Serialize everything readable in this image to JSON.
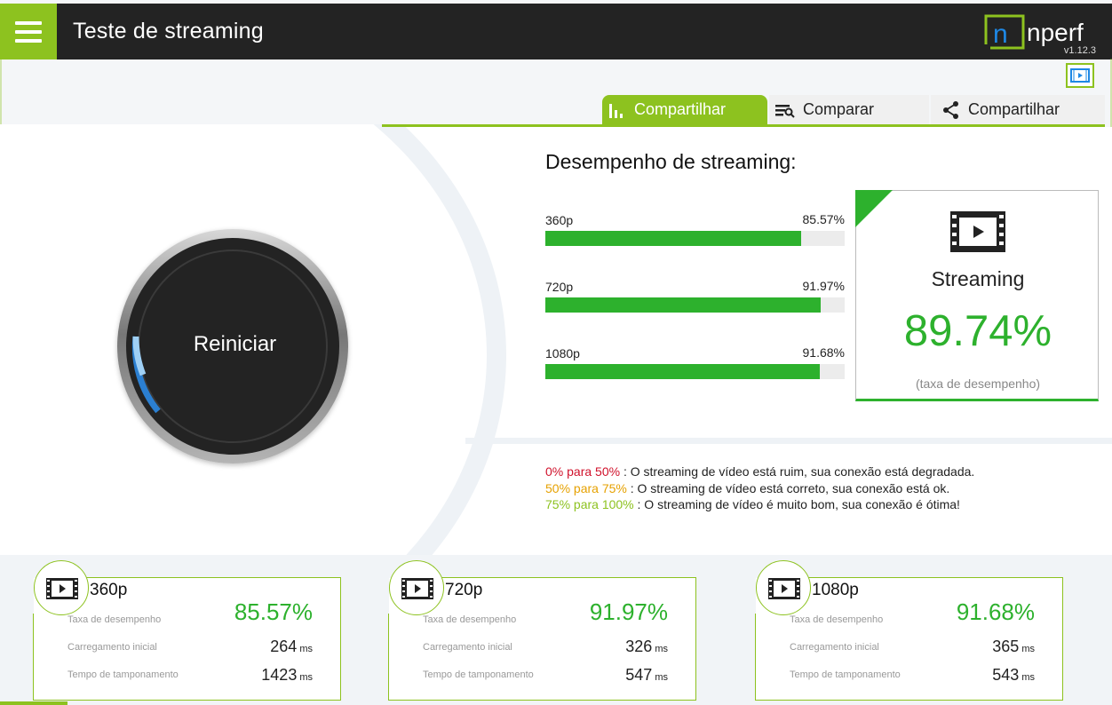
{
  "header": {
    "title": "Teste de streaming",
    "logo_text": "nperf",
    "version": "v1.12.3"
  },
  "tabs": [
    {
      "label": "Compartilhar",
      "icon": "bar-chart-icon",
      "active": true
    },
    {
      "label": "Comparar",
      "icon": "compare-list-icon",
      "active": false
    },
    {
      "label": "Compartilhar",
      "icon": "share-icon",
      "active": false
    }
  ],
  "dial": {
    "label": "Reiniciar"
  },
  "performance": {
    "title": "Desempenho de streaming:",
    "bars": [
      {
        "label": "360p",
        "value_text": "85.57%",
        "value": 85.57
      },
      {
        "label": "720p",
        "value_text": "91.97%",
        "value": 91.97
      },
      {
        "label": "1080p",
        "value_text": "91.68%",
        "value": 91.68
      }
    ]
  },
  "summary": {
    "label": "Streaming",
    "value": "89.74%",
    "caption": "(taxa de desempenho)"
  },
  "legend": {
    "bad_range": "0% para 50%",
    "bad_text": " : O streaming de vídeo está ruim, sua conexão está degradada.",
    "ok_range": "50% para 75%",
    "ok_text": " : O streaming de vídeo está correto, sua conexão está ok.",
    "good_range": "75% para 100%",
    "good_text": " : O streaming de vídeo é muito bom, sua conexão é ótima!"
  },
  "cards": [
    {
      "title": "360p",
      "rate_label": "Taxa de desempenho",
      "rate": "85.57%",
      "load_label": "Carregamento inicial",
      "load": "264",
      "buffer_label": "Tempo de tamponamento",
      "buffer": "1423",
      "unit": "ms"
    },
    {
      "title": "720p",
      "rate_label": "Taxa de desempenho",
      "rate": "91.97%",
      "load_label": "Carregamento inicial",
      "load": "326",
      "buffer_label": "Tempo de tamponamento",
      "buffer": "547",
      "unit": "ms"
    },
    {
      "title": "1080p",
      "rate_label": "Taxa de desempenho",
      "rate": "91.68%",
      "load_label": "Carregamento inicial",
      "load": "365",
      "buffer_label": "Tempo de tamponamento",
      "buffer": "543",
      "unit": "ms"
    }
  ],
  "colors": {
    "brand_green": "#8dc21f",
    "bar_green": "#2db12d",
    "bad": "#d0112b",
    "ok": "#e6a100",
    "good": "#8dc21f",
    "header_bg": "#232323"
  }
}
